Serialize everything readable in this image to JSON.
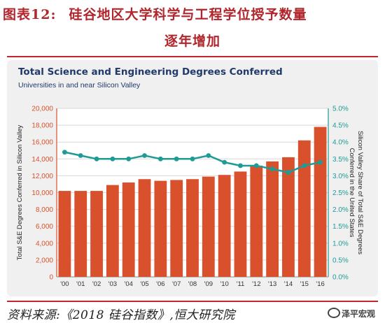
{
  "header": {
    "figure_number": "图表12:",
    "title_line1": "硅谷地区大学科学与工程学位授予数量",
    "title_line2": "逐年增加"
  },
  "source_note": "资料来源:《2018 硅谷指数》,恒大研究院",
  "watermark": "泽平宏观",
  "colors": {
    "bar": "#d9512c",
    "line": "#1f9b96",
    "left_axis": "#d9512c",
    "right_axis": "#1f9b96",
    "title": "#1f3a6b",
    "heading_red": "#b0262c"
  },
  "chart_data": {
    "type": "bar",
    "title": "Total Science and Engineering Degrees Conferred",
    "subtitle": "Universities in and near Silicon Valley",
    "categories": [
      "'00",
      "'01",
      "'02",
      "'03",
      "'04",
      "'05",
      "'06",
      "'07",
      "'08",
      "'09",
      "'10",
      "'11",
      "'12",
      "'13",
      "'14",
      "'15",
      "'16"
    ],
    "series": [
      {
        "type": "bar",
        "axis": "left",
        "values": [
          10200,
          10200,
          10200,
          10900,
          11200,
          11600,
          11400,
          11500,
          11600,
          11900,
          12100,
          12500,
          13200,
          13700,
          14200,
          16200,
          17800
        ]
      },
      {
        "type": "line",
        "axis": "right",
        "values": [
          3.7,
          3.6,
          3.5,
          3.5,
          3.5,
          3.6,
          3.5,
          3.5,
          3.5,
          3.6,
          3.4,
          3.3,
          3.3,
          3.2,
          3.1,
          3.3,
          3.4
        ]
      }
    ],
    "ylabel": "Total S&E Degrees Conferred in Silicon Valley",
    "y2label": "Silicon Valley Share of Total S&E Degrees Conferred in the United States",
    "ylim": [
      0,
      20000
    ],
    "y2lim": [
      0,
      5.0
    ],
    "yticks": [
      "0",
      "2,000",
      "4,000",
      "6,000",
      "8,000",
      "10,000",
      "12,000",
      "14,000",
      "16,000",
      "18,000",
      "20,000"
    ],
    "y2ticks": [
      "0.0%",
      "0.5%",
      "1.0%",
      "1.5%",
      "2.0%",
      "2.5%",
      "3.0%",
      "3.5%",
      "4.0%",
      "4.5%",
      "5.0%"
    ],
    "grid": true
  }
}
